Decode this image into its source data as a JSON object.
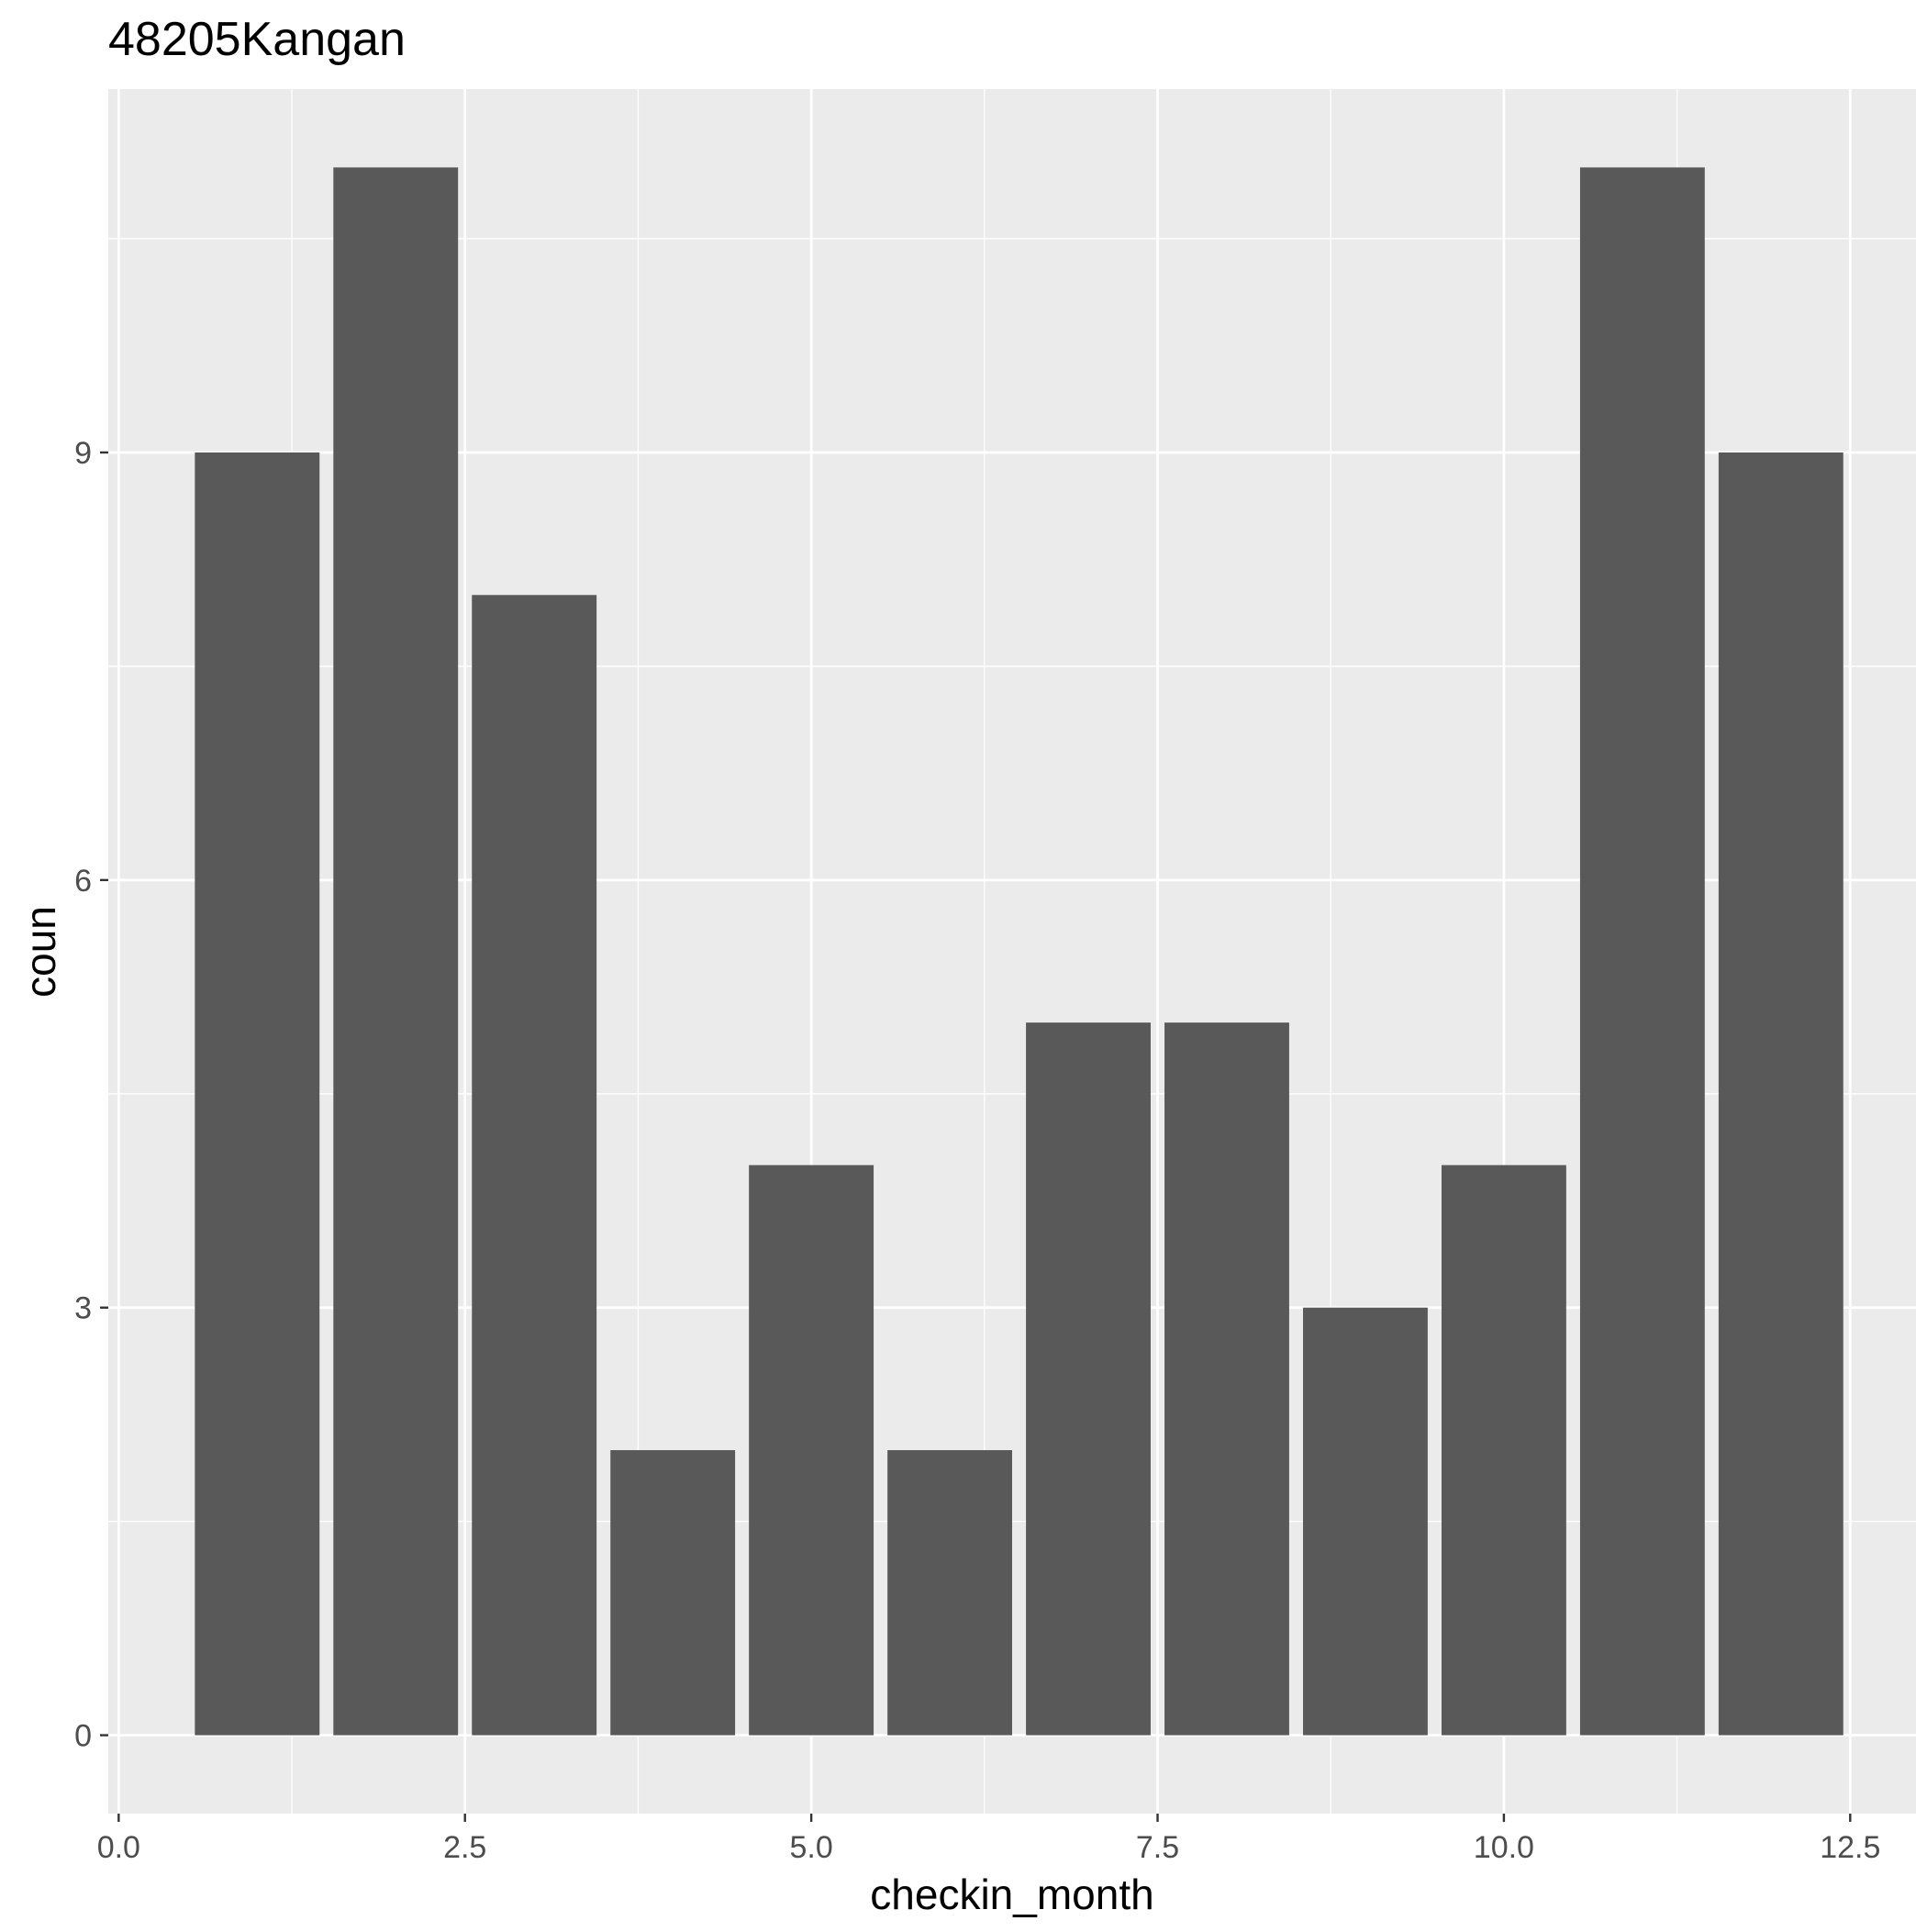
{
  "chart_data": {
    "type": "bar",
    "title": "48205Kangan",
    "xlabel": "checkin_month",
    "ylabel": "coun",
    "x": [
      1,
      2,
      3,
      4,
      5,
      6,
      7,
      8,
      9,
      10,
      11,
      12
    ],
    "values": [
      9,
      11,
      8,
      2,
      4,
      2,
      5,
      5,
      3,
      4,
      11,
      9
    ],
    "xlim": [
      -0.075,
      12.975
    ],
    "ylim": [
      -0.55,
      11.55
    ],
    "x_ticks": [
      0,
      2.5,
      5,
      7.5,
      10,
      12.5
    ],
    "x_tick_labels": [
      "0.0",
      "2.5",
      "5.0",
      "7.5",
      "10.0",
      "12.5"
    ],
    "y_ticks": [
      0,
      3,
      6,
      9
    ],
    "y_tick_labels": [
      "0",
      "3",
      "6",
      "9"
    ],
    "grid": true,
    "colors": {
      "bar": "#595959",
      "panel_background": "#ebebeb",
      "grid_line": "#ffffff",
      "text": "#000000",
      "tick_text": "#4d4d4d",
      "tick_mark": "#333333"
    }
  }
}
